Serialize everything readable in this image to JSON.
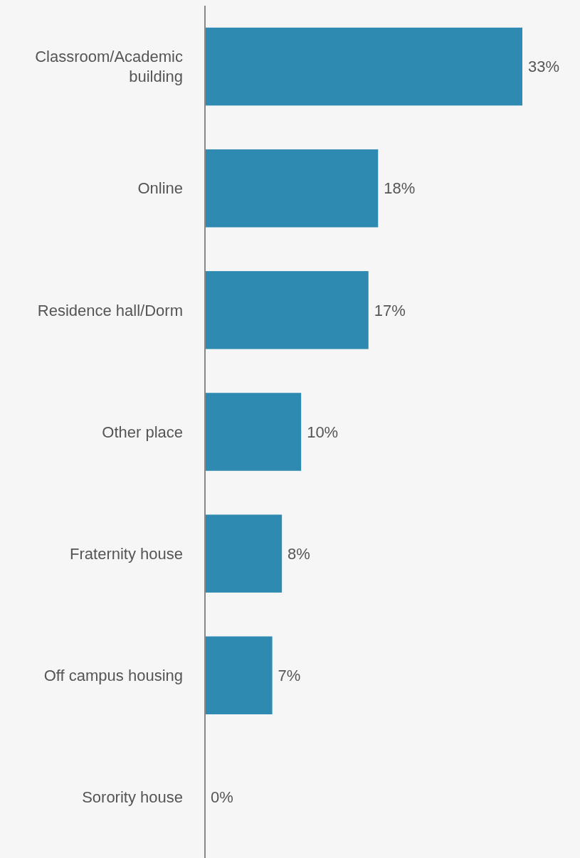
{
  "chart_data": {
    "type": "bar",
    "orientation": "horizontal",
    "categories": [
      "Classroom/Academic building",
      "Online",
      "Residence hall/Dorm",
      "Other place",
      "Fraternity house",
      "Off campus housing",
      "Sorority house"
    ],
    "values": [
      33,
      18,
      17,
      10,
      8,
      7,
      0
    ],
    "value_labels": [
      "33%",
      "18%",
      "17%",
      "10%",
      "8%",
      "7%",
      "0%"
    ],
    "color": "#2e8ab0"
  }
}
